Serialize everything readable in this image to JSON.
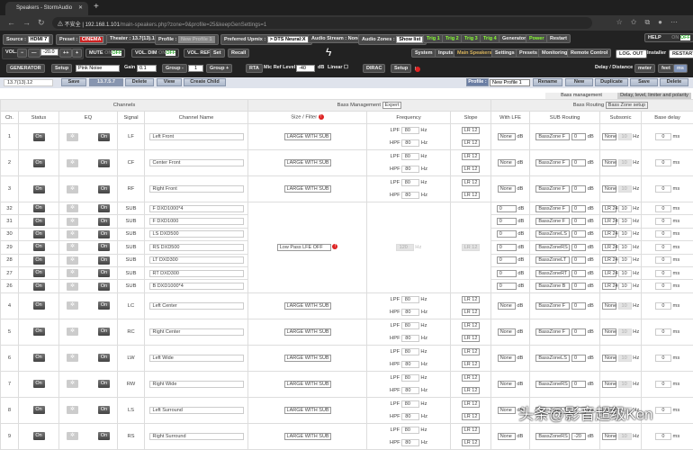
{
  "browser": {
    "tab_title": "Speakers - StormAudio",
    "security": "不安全",
    "url_host": "192.168.1.101",
    "url_path": "/main-speakers.php?zone=9&profile=25&keepGenSettings=1"
  },
  "toolbar1": {
    "source_label": "Source :",
    "source": "HDMI 7",
    "preset_label": "Preset :",
    "preset": "CINEMA",
    "theater": "Theater : 13.7(13).12",
    "profile_label": "Profile :",
    "profile": "New Profile 1",
    "upmix_label": "Preferred Upmix :",
    "upmix": "> DTS Neural:X",
    "audio_stream": "Audio Stream : None",
    "zones_label": "Audio Zones :",
    "zones": "Show list",
    "trig1": "Trig 1",
    "trig2": "Trig 2",
    "trig3": "Trig 3",
    "trig4": "Trig 4",
    "generator": "Generator",
    "power": "Power",
    "restart": "Restart",
    "help": "HELP",
    "on": "ON",
    "off": "OFF"
  },
  "toolbar2": {
    "vol": "VOL.",
    "minus": "−",
    "mminus": "—",
    "volume": "-20.0",
    "pplus": "++",
    "plus": "+",
    "mute": "MUTE",
    "voldim": "VOL. DIM",
    "volref": "VOL. REF",
    "set": "Set",
    "recall": "Recall",
    "nav": [
      "System",
      "Inputs",
      "Main Speakers",
      "Settings",
      "Presets",
      "Monitoring",
      "Remote Control"
    ],
    "logout": "LOG. OUT",
    "installer": "Installer",
    "restart": "RESTART"
  },
  "toolbar3": {
    "generator": "GENERATOR",
    "setup": "Setup",
    "signal": "Pink Noise",
    "gain_label": "Gain",
    "gain": "0.1",
    "group_minus": "Group -",
    "group": "1",
    "group_plus": "Group +",
    "rta": "RTA",
    "mic_label": "Mic Ref Level",
    "mic": "-40",
    "db": "dB",
    "linear": "Linear",
    "dirac": "DIRAC",
    "dirac_setup": "Setup",
    "delay_label": "Delay / Distance",
    "meter": "meter",
    "feet": "feet",
    "ms": "ms"
  },
  "configbar": {
    "name": "13.7(13).12",
    "save": "Save",
    "layout": "13.7.5.7",
    "delete": "Delete",
    "view": "View",
    "create_child": "Create Child",
    "profile_label": "Profile :",
    "profile": "New Profile 1",
    "rename": "Rename",
    "new": "New",
    "duplicate": "Duplicate",
    "save2": "Save",
    "delete2": "Delete"
  },
  "tabs": {
    "bass": "Bass management",
    "delay": "Delay, level, limiter and polarity"
  },
  "table": {
    "channels": "Channels",
    "bass_mgmt_label": "Bass Management",
    "bass_mgmt": "Expert",
    "bass_routing_label": "Bass Routing",
    "bass_zone_setup": "Bass Zone setup",
    "headers": [
      "Ch.",
      "Status",
      "EQ",
      "Signal",
      "Channel Name",
      "Size / Filter",
      "Frequency",
      "Slope",
      "With LFE",
      "SUB Routing",
      "Subsonic",
      "Base delay"
    ],
    "on": "On",
    "lpf": "LPF",
    "hpf": "HPF",
    "hz": "Hz",
    "db": "dB",
    "ms": "ms",
    "main_rows": [
      {
        "ch": "1",
        "signal": "LF",
        "name": "Left Front",
        "size": "LARGE WITH SUB",
        "lpf": "80",
        "hpf": "80",
        "slope1": "LR 12",
        "slope2": "LR 12",
        "lfe": "None",
        "route": "BassZone F",
        "route_db": "0",
        "subsonic": "None",
        "sub_hz": "10",
        "delay": "0"
      },
      {
        "ch": "2",
        "signal": "CF",
        "name": "Center Front",
        "size": "LARGE WITH SUB",
        "lpf": "80",
        "hpf": "80",
        "slope1": "LR 12",
        "slope2": "LR 12",
        "lfe": "None",
        "route": "BassZone F",
        "route_db": "0",
        "subsonic": "None",
        "sub_hz": "10",
        "delay": "0"
      },
      {
        "ch": "3",
        "signal": "RF",
        "name": "Right Front",
        "size": "LARGE WITH SUB",
        "lpf": "80",
        "hpf": "80",
        "slope1": "LR 12",
        "slope2": "LR 12",
        "lfe": "None",
        "route": "BassZone F",
        "route_db": "0",
        "subsonic": "None",
        "sub_hz": "10",
        "delay": "0"
      }
    ],
    "sub_filter": "Low Pass LFE OFF",
    "sub_freq": "120",
    "sub_slope": "LR 12",
    "sub_rows": [
      {
        "ch": "32",
        "signal": "SUB",
        "name": "F DXD1000*4",
        "lfe": "0",
        "route": "BassZone F",
        "route_db": "0",
        "subsonic": "LR 24",
        "sub_hz": "10",
        "delay": "0"
      },
      {
        "ch": "31",
        "signal": "SUB",
        "name": "F DXD1000",
        "lfe": "0",
        "route": "BassZone F",
        "route_db": "0",
        "subsonic": "LR 24",
        "sub_hz": "10",
        "delay": "0"
      },
      {
        "ch": "30",
        "signal": "SUB",
        "name": "LS DXD500",
        "lfe": "0",
        "route": "BassZoneLS",
        "route_db": "0",
        "subsonic": "LR 24",
        "sub_hz": "10",
        "delay": "0"
      },
      {
        "ch": "29",
        "signal": "SUB",
        "name": "RS DXD500",
        "lfe": "0",
        "route": "BassZoneRS",
        "route_db": "0",
        "subsonic": "LR 24",
        "sub_hz": "10",
        "delay": "0"
      },
      {
        "ch": "28",
        "signal": "SUB",
        "name": "LT DXD300",
        "lfe": "0",
        "route": "BassZoneLT",
        "route_db": "0",
        "subsonic": "LR 24",
        "sub_hz": "10",
        "delay": "0"
      },
      {
        "ch": "27",
        "signal": "SUB",
        "name": "RT DXD300",
        "lfe": "0",
        "route": "BassZoneRT",
        "route_db": "0",
        "subsonic": "LR 24",
        "sub_hz": "10",
        "delay": "0"
      },
      {
        "ch": "26",
        "signal": "SUB",
        "name": "B DXD1000*4",
        "lfe": "0",
        "route": "BassZone B",
        "route_db": "0",
        "subsonic": "LR 24",
        "sub_hz": "10",
        "delay": "0"
      }
    ],
    "more_rows": [
      {
        "ch": "4",
        "signal": "LC",
        "name": "Left Center",
        "size": "LARGE WITH SUB",
        "lpf": "80",
        "hpf": "80",
        "slope1": "LR 12",
        "slope2": "LR 12",
        "lfe": "None",
        "route": "BassZone F",
        "route_db": "0",
        "subsonic": "None",
        "sub_hz": "10",
        "delay": "0"
      },
      {
        "ch": "5",
        "signal": "RC",
        "name": "Right Center",
        "size": "LARGE WITH SUB",
        "lpf": "80",
        "hpf": "80",
        "slope1": "LR 12",
        "slope2": "LR 12",
        "lfe": "None",
        "route": "BassZone F",
        "route_db": "0",
        "subsonic": "None",
        "sub_hz": "10",
        "delay": "0"
      },
      {
        "ch": "6",
        "signal": "LW",
        "name": "Left Wide",
        "size": "LARGE WITH SUB",
        "lpf": "80",
        "hpf": "80",
        "slope1": "LR 12",
        "slope2": "LR 12",
        "lfe": "None",
        "route": "BassZoneLS",
        "route_db": "0",
        "subsonic": "None",
        "sub_hz": "10",
        "delay": "0"
      },
      {
        "ch": "7",
        "signal": "RW",
        "name": "Right Wide",
        "size": "LARGE WITH SUB",
        "lpf": "80",
        "hpf": "80",
        "slope1": "LR 12",
        "slope2": "LR 12",
        "lfe": "None",
        "route": "BassZoneRS",
        "route_db": "0",
        "subsonic": "None",
        "sub_hz": "10",
        "delay": "0"
      },
      {
        "ch": "8",
        "signal": "LS",
        "name": "Left Surround",
        "size": "LARGE WITH SUB",
        "lpf": "80",
        "hpf": "80",
        "slope1": "LR 12",
        "slope2": "LR 12",
        "lfe": "None",
        "route": "BassZoneLS",
        "route_db": "0",
        "subsonic": "None",
        "sub_hz": "10",
        "delay": "0"
      },
      {
        "ch": "9",
        "signal": "RS",
        "name": "Right Surround",
        "size": "LARGE WITH SUB",
        "lpf": "80",
        "hpf": "80",
        "slope1": "LR 12",
        "slope2": "LR 12",
        "lfe": "None",
        "route": "BassZoneRS",
        "route_db": "-20",
        "subsonic": "None",
        "sub_hz": "10",
        "delay": "0"
      }
    ]
  },
  "watermark": "头条@影音超级Ken",
  "colors": {
    "accent_green": "#88ff33",
    "preset_red": "#cc2222",
    "dark_bg": "#222222"
  }
}
